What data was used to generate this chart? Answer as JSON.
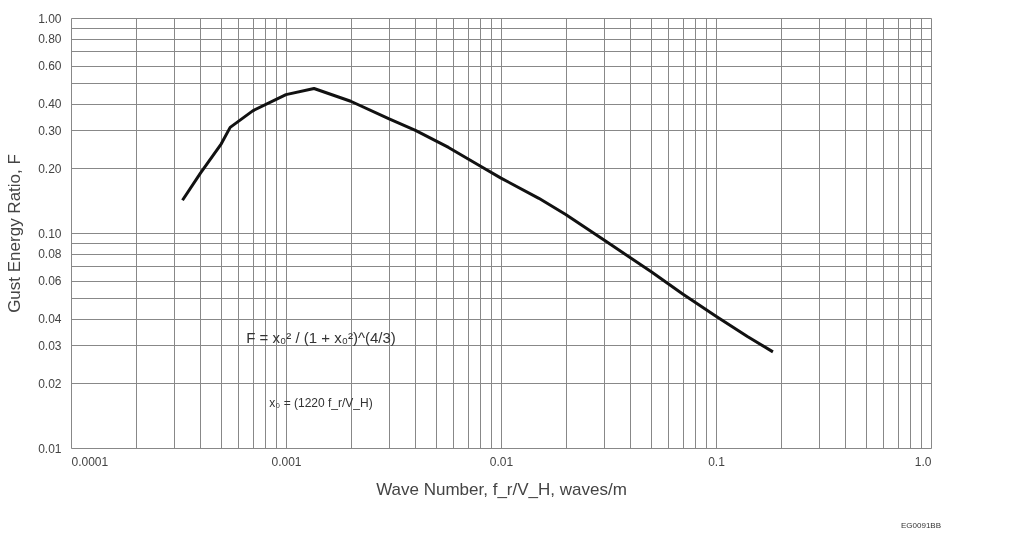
{
  "chart_data": {
    "type": "line",
    "xlabel": "Wave Number, f_r/V_H, waves/m",
    "ylabel": "Gust Energy Ratio, F",
    "log": "xy",
    "grid": true,
    "marker": "none",
    "line_style": "solid",
    "x": [
      0.00033,
      0.0004,
      0.0005,
      0.00055,
      0.0007,
      0.001,
      0.00135,
      0.002,
      0.003,
      0.004,
      0.0057,
      0.008,
      0.01,
      0.015,
      0.02,
      0.031,
      0.05,
      0.07,
      0.1,
      0.14,
      0.184
    ],
    "series": [
      {
        "color": "#111111",
        "values": [
          0.142,
          0.19,
          0.26,
          0.31,
          0.37,
          0.44,
          0.47,
          0.41,
          0.34,
          0.3,
          0.25,
          0.205,
          0.18,
          0.145,
          0.122,
          0.091,
          0.066,
          0.052,
          0.041,
          0.033,
          0.028
        ]
      }
    ],
    "xlim": [
      0.0001,
      1
    ],
    "ylim": [
      0.01,
      1
    ],
    "xticks": [
      0.0001,
      {
        "value": 0.0002,
        "label": null
      },
      {
        "value": 0.0003,
        "label": null
      },
      {
        "value": 0.0004,
        "label": null
      },
      {
        "value": 0.0005,
        "label": null
      },
      {
        "value": 0.0006,
        "label": null
      },
      {
        "value": 0.0007,
        "label": null
      },
      {
        "value": 0.0008,
        "label": null
      },
      {
        "value": 0.0009,
        "label": null
      },
      0.001,
      {
        "value": 0.002,
        "label": null
      },
      {
        "value": 0.003,
        "label": null
      },
      {
        "value": 0.004,
        "label": null
      },
      {
        "value": 0.005,
        "label": null
      },
      {
        "value": 0.006,
        "label": null
      },
      {
        "value": 0.007,
        "label": null
      },
      {
        "value": 0.008,
        "label": null
      },
      {
        "value": 0.009,
        "label": null
      },
      0.01,
      {
        "value": 0.02,
        "label": null
      },
      {
        "value": 0.03,
        "label": null
      },
      {
        "value": 0.04,
        "label": null
      },
      {
        "value": 0.05,
        "label": null
      },
      {
        "value": 0.06,
        "label": null
      },
      {
        "value": 0.07,
        "label": null
      },
      {
        "value": 0.08,
        "label": null
      },
      {
        "value": 0.09,
        "label": null
      },
      0.1,
      {
        "value": 0.2,
        "label": null
      },
      {
        "value": 0.3,
        "label": null
      },
      {
        "value": 0.4,
        "label": null
      },
      {
        "value": 0.5,
        "label": null
      },
      {
        "value": 0.6,
        "label": null
      },
      {
        "value": 0.7,
        "label": null
      },
      {
        "value": 0.8,
        "label": null
      },
      {
        "value": 0.9,
        "label": null
      },
      {
        "value": 1,
        "label": "1.0"
      }
    ],
    "yticks": [
      0.01,
      0.02,
      0.03,
      0.04,
      {
        "value": 0.05,
        "label": null
      },
      0.06,
      {
        "value": 0.07,
        "label": null
      },
      {
        "value": 0.08,
        "label": "0.08"
      },
      {
        "value": 0.09,
        "label": null
      },
      {
        "value": 0.1,
        "label": "0.10"
      },
      {
        "value": 0.2,
        "label": "0.20"
      },
      {
        "value": 0.3,
        "label": "0.30"
      },
      {
        "value": 0.4,
        "label": "0.40"
      },
      {
        "value": 0.5,
        "label": null
      },
      {
        "value": 0.6,
        "label": "0.60"
      },
      {
        "value": 0.7,
        "label": null
      },
      {
        "value": 0.8,
        "label": "0.80"
      },
      {
        "value": 0.9,
        "label": null
      },
      {
        "value": 1,
        "label": "1.00"
      }
    ],
    "annotations": [
      "F = x₀² / (1 + x₀²)^(4/3)",
      "x₀ = (1220 f_r/V_H)",
      "EG0091BB"
    ]
  }
}
